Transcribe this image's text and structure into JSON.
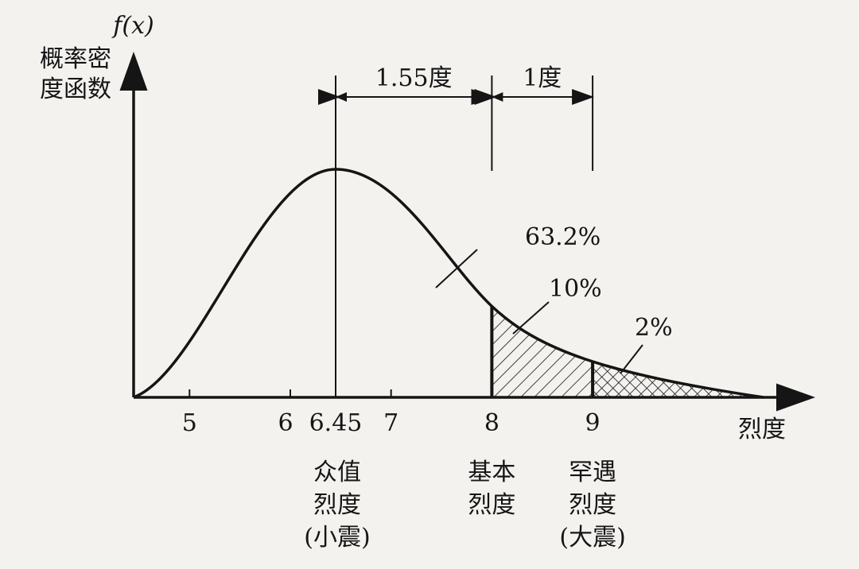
{
  "y_axis": {
    "symbol": "f(x)",
    "label": [
      "概率密",
      "度函数"
    ]
  },
  "x_axis": {
    "label": "烈度",
    "ticks": [
      5,
      6,
      6.45,
      7,
      8,
      9
    ]
  },
  "spans": [
    {
      "label": "1.55度"
    },
    {
      "label": "1度"
    }
  ],
  "regions": [
    {
      "label": "63.2%"
    },
    {
      "label": "10%"
    },
    {
      "label": "2%"
    }
  ],
  "markers": [
    {
      "tick": 2,
      "label": [
        "众值",
        "烈度",
        "(小震)"
      ]
    },
    {
      "tick": 4,
      "label": [
        "基本",
        "烈度"
      ]
    },
    {
      "tick": 5,
      "label": [
        "罕遇",
        "烈度",
        "(大震)"
      ]
    }
  ]
}
